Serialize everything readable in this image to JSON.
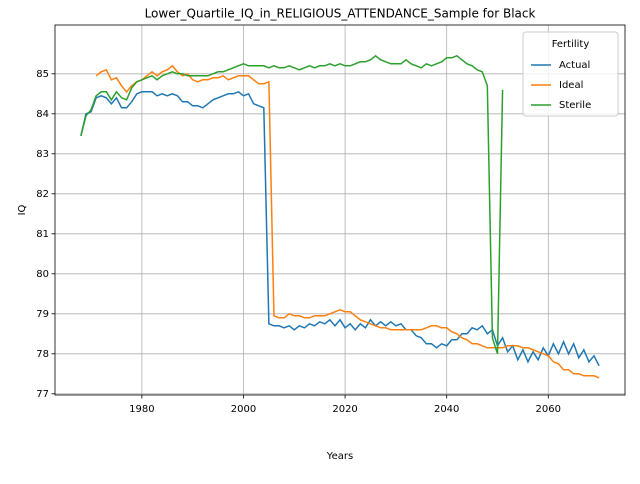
{
  "chart_data": {
    "type": "line",
    "title": "Lower_Quartile_IQ_in_RELIGIOUS_ATTENDANCE_Sample for Black",
    "xlabel": "Years",
    "ylabel": "IQ",
    "x": [
      1968,
      1969,
      1970,
      1971,
      1972,
      1973,
      1974,
      1975,
      1976,
      1977,
      1978,
      1979,
      1980,
      1981,
      1982,
      1983,
      1984,
      1985,
      1986,
      1987,
      1988,
      1989,
      1990,
      1991,
      1992,
      1993,
      1994,
      1995,
      1996,
      1997,
      1998,
      1999,
      2000,
      2001,
      2002,
      2003,
      2004,
      2005,
      2006,
      2007,
      2008,
      2009,
      2010,
      2011,
      2012,
      2013,
      2014,
      2015,
      2016,
      2017,
      2018,
      2019,
      2020,
      2021,
      2022,
      2023,
      2024,
      2025,
      2026,
      2027,
      2028,
      2029,
      2030,
      2031,
      2032,
      2033,
      2034,
      2035,
      2036,
      2037,
      2038,
      2039,
      2040,
      2041,
      2042,
      2043,
      2044,
      2045,
      2046,
      2047,
      2048,
      2049,
      2050,
      2051,
      2052,
      2053,
      2054,
      2055,
      2056,
      2057,
      2058,
      2059,
      2060,
      2061,
      2062,
      2063,
      2064,
      2065,
      2066,
      2067,
      2068,
      2069,
      2070
    ],
    "series": [
      {
        "name": "Actual",
        "color": "#1f77b4",
        "values": [
          83.45,
          84.0,
          84.05,
          84.4,
          84.45,
          84.4,
          84.25,
          84.4,
          84.15,
          84.15,
          84.3,
          84.5,
          84.55,
          84.55,
          84.55,
          84.45,
          84.5,
          84.45,
          84.5,
          84.45,
          84.3,
          84.3,
          84.2,
          84.2,
          84.15,
          84.25,
          84.35,
          84.4,
          84.45,
          84.5,
          84.5,
          84.55,
          84.45,
          84.5,
          84.25,
          84.2,
          84.15,
          78.75,
          78.7,
          78.7,
          78.65,
          78.7,
          78.6,
          78.7,
          78.65,
          78.75,
          78.7,
          78.8,
          78.75,
          78.85,
          78.7,
          78.85,
          78.65,
          78.75,
          78.6,
          78.75,
          78.65,
          78.85,
          78.7,
          78.8,
          78.7,
          78.8,
          78.7,
          78.75,
          78.6,
          78.6,
          78.45,
          78.4,
          78.25,
          78.25,
          78.15,
          78.25,
          78.2,
          78.35,
          78.35,
          78.5,
          78.5,
          78.65,
          78.6,
          78.7,
          78.5,
          78.6,
          78.2,
          78.4,
          78.05,
          78.2,
          77.85,
          78.1,
          77.8,
          78.05,
          77.85,
          78.15,
          77.95,
          78.25,
          78.0,
          78.3,
          78.0,
          78.25,
          77.9,
          78.1,
          77.8,
          77.95,
          77.7
        ]
      },
      {
        "name": "Ideal",
        "color": "#ff7f0e",
        "values": [
          null,
          null,
          null,
          84.95,
          85.05,
          85.1,
          84.85,
          84.9,
          84.7,
          84.55,
          84.7,
          84.8,
          84.85,
          84.95,
          85.05,
          84.95,
          85.05,
          85.1,
          85.2,
          85.05,
          84.95,
          85.0,
          84.85,
          84.8,
          84.85,
          84.85,
          84.9,
          84.9,
          84.95,
          84.85,
          84.9,
          84.95,
          84.95,
          84.95,
          84.85,
          84.75,
          84.75,
          84.8,
          78.95,
          78.9,
          78.9,
          79.0,
          78.95,
          78.95,
          78.9,
          78.9,
          78.95,
          78.95,
          78.95,
          79.0,
          79.05,
          79.1,
          79.05,
          79.05,
          78.95,
          78.85,
          78.8,
          78.75,
          78.7,
          78.65,
          78.65,
          78.6,
          78.6,
          78.6,
          78.6,
          78.6,
          78.6,
          78.6,
          78.65,
          78.7,
          78.7,
          78.65,
          78.65,
          78.55,
          78.5,
          78.4,
          78.35,
          78.25,
          78.25,
          78.2,
          78.15,
          78.15,
          78.15,
          78.15,
          78.2,
          78.2,
          78.2,
          78.15,
          78.15,
          78.1,
          78.05,
          78.0,
          77.95,
          77.8,
          77.75,
          77.6,
          77.6,
          77.5,
          77.5,
          77.45,
          77.45,
          77.45,
          77.4
        ]
      },
      {
        "name": "Sterile",
        "color": "#2ca02c",
        "values": [
          83.45,
          83.95,
          84.1,
          84.45,
          84.55,
          84.55,
          84.35,
          84.55,
          84.4,
          84.35,
          84.65,
          84.8,
          84.85,
          84.9,
          84.95,
          84.85,
          84.95,
          85.0,
          85.05,
          85.0,
          85.0,
          84.95,
          84.95,
          84.95,
          84.95,
          84.95,
          85.0,
          85.05,
          85.05,
          85.1,
          85.15,
          85.2,
          85.25,
          85.2,
          85.2,
          85.2,
          85.2,
          85.15,
          85.2,
          85.15,
          85.15,
          85.2,
          85.15,
          85.1,
          85.15,
          85.2,
          85.15,
          85.2,
          85.2,
          85.25,
          85.2,
          85.25,
          85.2,
          85.2,
          85.25,
          85.3,
          85.3,
          85.35,
          85.45,
          85.35,
          85.3,
          85.25,
          85.25,
          85.25,
          85.35,
          85.25,
          85.2,
          85.15,
          85.25,
          85.2,
          85.25,
          85.3,
          85.4,
          85.4,
          85.45,
          85.35,
          85.25,
          85.2,
          85.1,
          85.05,
          84.7,
          78.4,
          78.0,
          84.6,
          null,
          null,
          null,
          null,
          null,
          null,
          null,
          null,
          null,
          null,
          null,
          null,
          null,
          null,
          null,
          null,
          null,
          null,
          null
        ]
      }
    ],
    "xlim": [
      1962.9,
      2075.1
    ],
    "ylim": [
      76.97,
      86.22
    ],
    "xticks": [
      1980,
      2000,
      2020,
      2040,
      2060
    ],
    "yticks": [
      77,
      78,
      79,
      80,
      81,
      82,
      83,
      84,
      85
    ],
    "grid": true,
    "legend_title": "Fertility",
    "legend_loc": "upper right"
  }
}
